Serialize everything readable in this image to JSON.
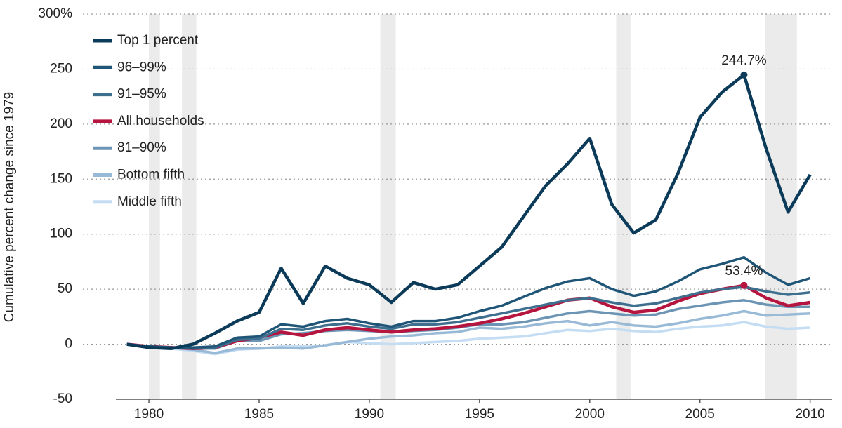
{
  "chart_data": {
    "type": "line",
    "y_label": "Cumulative percent change since 1979",
    "x": [
      1979,
      1980,
      1981,
      1982,
      1983,
      1984,
      1985,
      1986,
      1987,
      1988,
      1989,
      1990,
      1991,
      1992,
      1993,
      1994,
      1995,
      1996,
      1997,
      1998,
      1999,
      2000,
      2001,
      2002,
      2003,
      2004,
      2005,
      2006,
      2007,
      2008,
      2009,
      2010
    ],
    "xlim": [
      1978.5,
      2011
    ],
    "xticks": [
      1980,
      1985,
      1990,
      1995,
      2000,
      2005,
      2010
    ],
    "ylim": [
      -50,
      300
    ],
    "yticks": [
      -50,
      0,
      50,
      100,
      150,
      200,
      250,
      {
        "value": 300,
        "label": "300%"
      }
    ],
    "grid": true,
    "legend": "upper left",
    "recessions": [
      [
        1980,
        1980.5
      ],
      [
        1981.5,
        1982.15
      ],
      [
        1990.5,
        1991.2
      ],
      [
        2001.2,
        2001.85
      ],
      [
        2007.95,
        2009.4
      ]
    ],
    "series": [
      {
        "name": "Top 1 percent",
        "color": "#0c3b5a",
        "values": [
          0,
          -3,
          -4,
          0,
          10,
          21,
          29,
          69,
          37,
          71,
          60,
          54,
          38,
          56,
          50,
          54,
          71,
          88,
          116,
          144,
          164,
          187,
          127,
          101,
          113,
          155,
          206,
          229,
          244.7,
          178,
          120,
          154
        ],
        "value_labels": [
          null,
          null,
          null,
          null,
          null,
          null,
          null,
          null,
          null,
          null,
          null,
          null,
          null,
          null,
          null,
          null,
          null,
          null,
          null,
          null,
          null,
          null,
          null,
          null,
          null,
          null,
          null,
          null,
          "244.7%",
          null,
          null,
          null
        ]
      },
      {
        "name": "96–99%",
        "color": "#1f5577",
        "values": [
          0,
          -2,
          -3,
          -3,
          -2,
          6,
          7,
          18,
          16,
          21,
          23,
          19,
          16,
          21,
          21,
          24,
          30,
          35,
          43,
          51,
          57,
          60,
          50,
          44,
          48,
          57,
          68,
          73,
          79,
          65,
          54,
          60
        ]
      },
      {
        "name": "91–95%",
        "color": "#3e6f8f",
        "values": [
          0,
          -2,
          -3,
          -4,
          -3,
          4,
          5,
          14,
          13,
          17,
          19,
          16,
          14,
          18,
          18,
          20,
          24,
          28,
          32,
          36,
          40,
          42,
          38,
          35,
          37,
          42,
          47,
          50,
          52,
          48,
          45,
          47
        ]
      },
      {
        "name": "All households",
        "color": "#b5153e",
        "values": [
          0,
          -2,
          -3,
          -4,
          -3,
          3,
          6,
          11,
          8,
          13,
          15,
          13,
          11,
          13,
          14,
          16,
          19,
          23,
          28,
          34,
          40,
          42,
          34,
          29,
          31,
          39,
          46,
          50,
          53.4,
          42,
          35,
          38
        ],
        "value_labels": [
          null,
          null,
          null,
          null,
          null,
          null,
          null,
          null,
          null,
          null,
          null,
          null,
          null,
          null,
          null,
          null,
          null,
          null,
          null,
          null,
          null,
          null,
          null,
          null,
          null,
          null,
          null,
          null,
          "53.4%",
          null,
          null,
          null
        ]
      },
      {
        "name": "81–90%",
        "color": "#6c94b4",
        "values": [
          0,
          -2,
          -3,
          -4,
          -4,
          3,
          3,
          9,
          10,
          12,
          13,
          12,
          11,
          12,
          13,
          15,
          18,
          18,
          20,
          24,
          28,
          30,
          28,
          26,
          27,
          32,
          35,
          38,
          40,
          36,
          34,
          34
        ]
      },
      {
        "name": "Bottom fifth",
        "color": "#99bad7",
        "values": [
          0,
          -2,
          -3,
          -5,
          -8,
          -4,
          -4,
          -3,
          -4,
          -1,
          2,
          5,
          7,
          8,
          10,
          11,
          15,
          14,
          16,
          19,
          21,
          17,
          20,
          17,
          16,
          19,
          23,
          26,
          30,
          26,
          27,
          28
        ]
      },
      {
        "name": "Middle fifth",
        "color": "#c4ddf3",
        "values": [
          0,
          -3,
          -4,
          -6,
          -9,
          -5,
          -4,
          -2,
          -2,
          -1,
          2,
          1,
          0,
          1,
          2,
          3,
          5,
          6,
          7,
          10,
          13,
          12,
          14,
          12,
          11,
          14,
          16,
          17,
          20,
          16,
          14,
          15
        ]
      }
    ]
  }
}
